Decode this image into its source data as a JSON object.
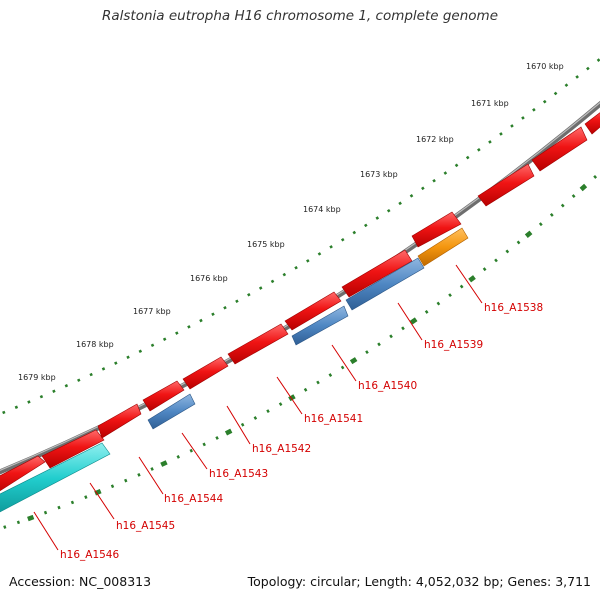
{
  "title": "Ralstonia eutropha H16 chromosome 1, complete genome",
  "footer": {
    "accession": "Accession: NC_008313",
    "summary": "Topology: circular; Length: 4,052,032 bp; Genes: 3,711"
  },
  "scale_labels": [
    "1670 kbp",
    "1671 kbp",
    "1672 kbp",
    "1673 kbp",
    "1674 kbp",
    "1675 kbp",
    "1676 kbp",
    "1677 kbp",
    "1678 kbp",
    "1679 kbp"
  ],
  "colors": {
    "forward_cds": "#ee1111",
    "reverse_cds_blue": "#4f87c3",
    "reverse_cds_orange": "#f4960f",
    "reverse_cds_cyan": "#21cdcd",
    "backbone": "#777777",
    "ticks": "#2b7f2b",
    "gene_label": "#d40000"
  },
  "gene_labels": [
    "h16_A1538",
    "h16_A1539",
    "h16_A1540",
    "h16_A1541",
    "h16_A1542",
    "h16_A1543",
    "h16_A1544",
    "h16_A1545",
    "h16_A1546"
  ]
}
